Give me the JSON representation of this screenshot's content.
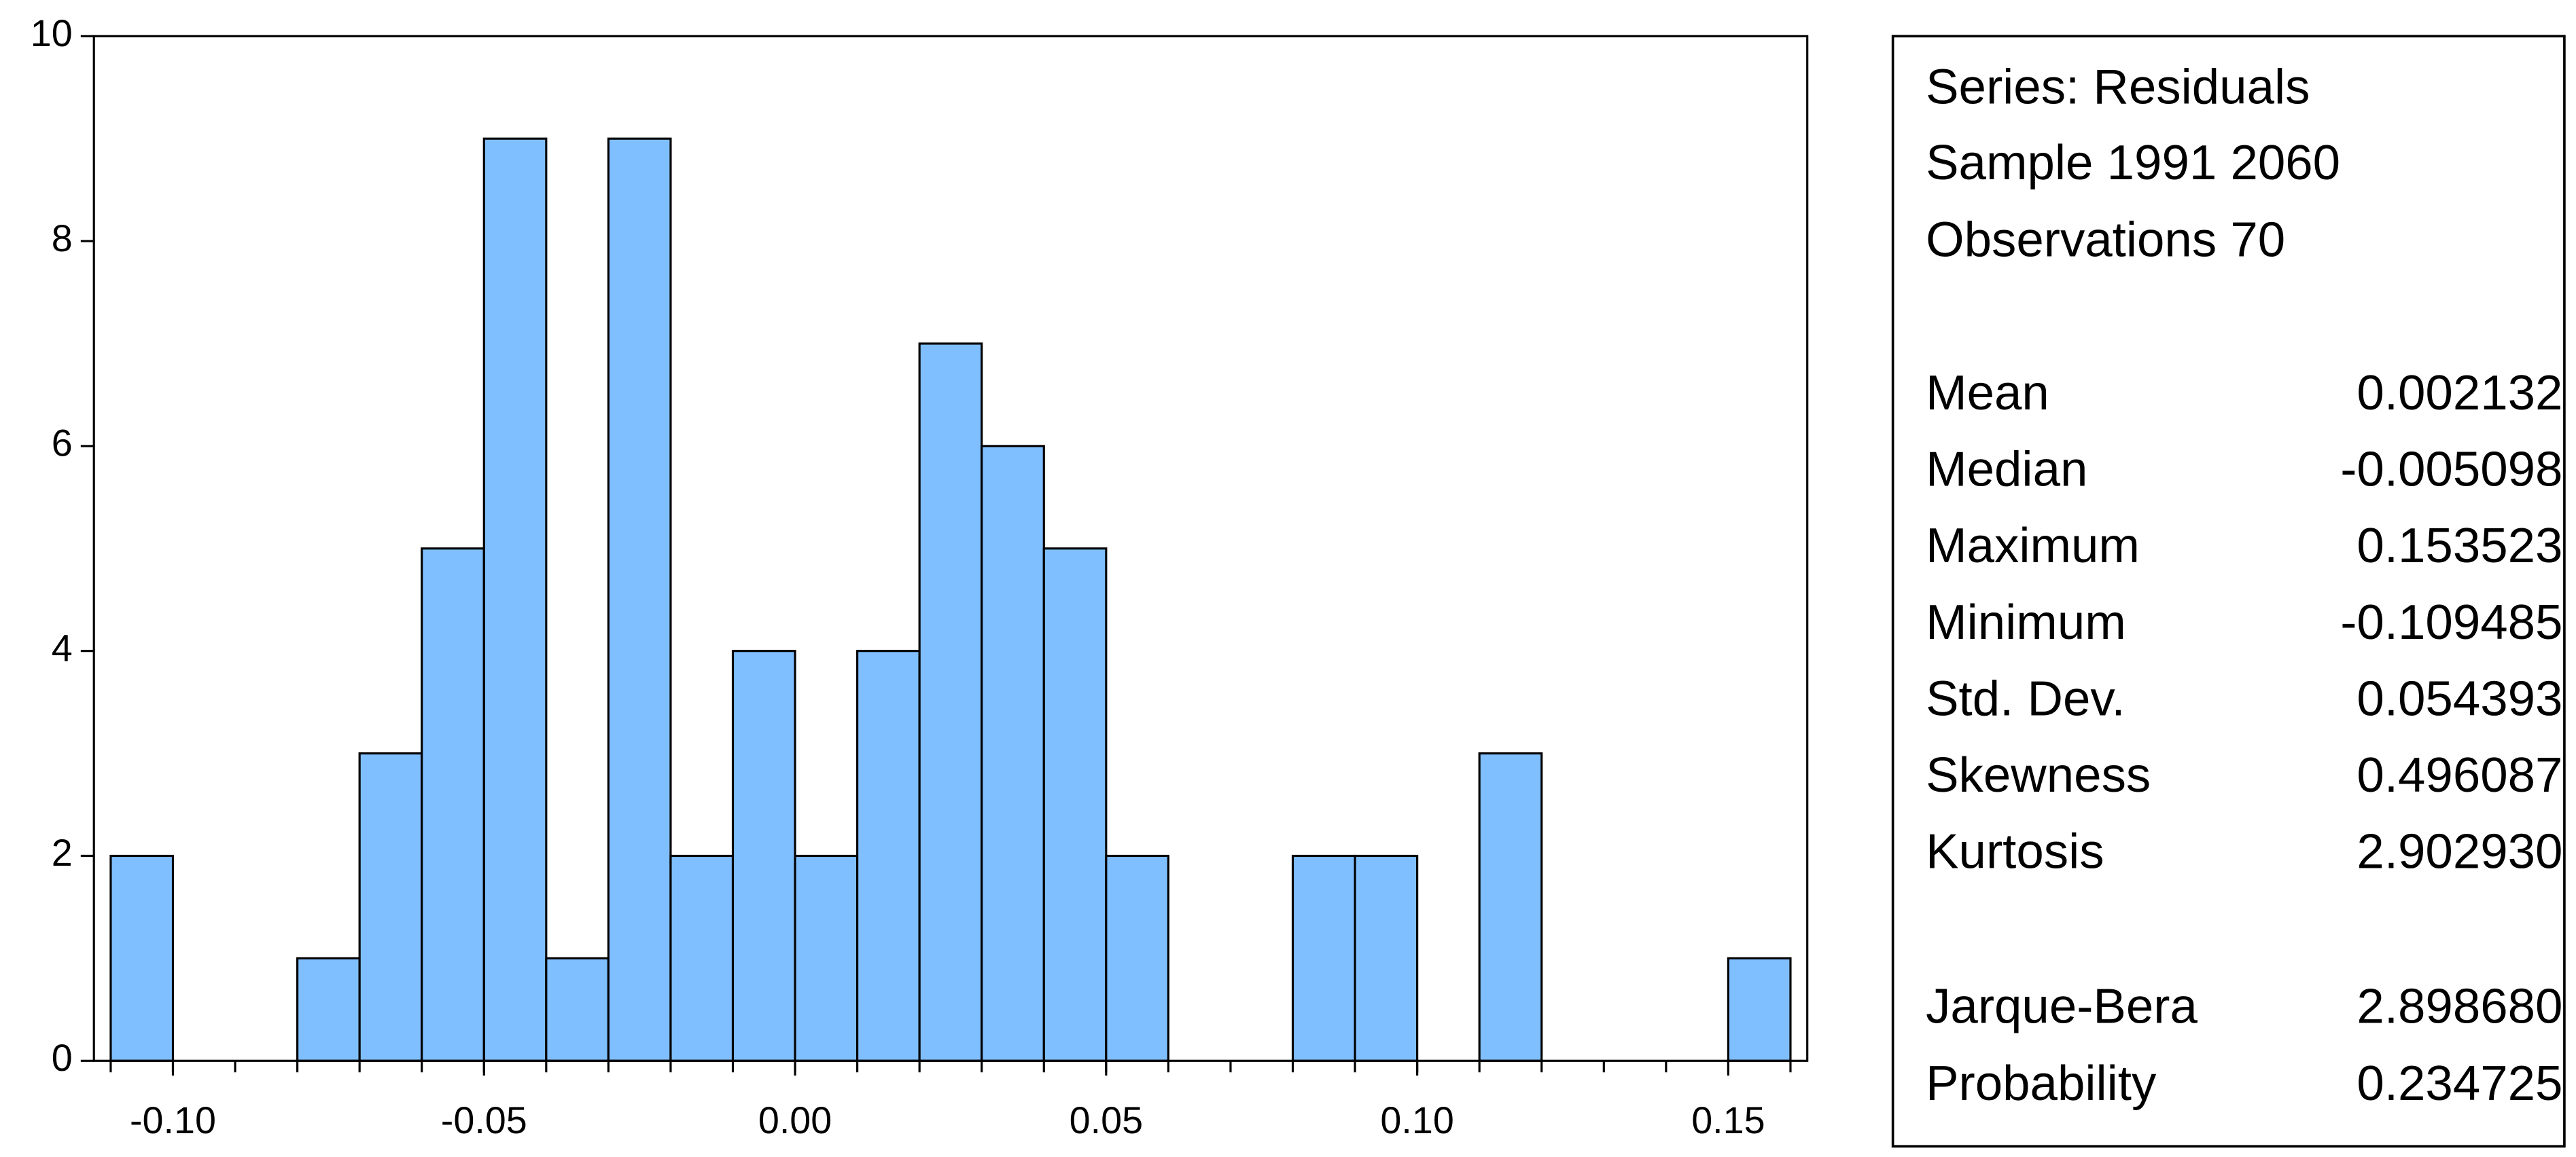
{
  "chart_data": {
    "type": "histogram",
    "bins": [
      -0.11,
      -0.1,
      -0.09,
      -0.08,
      -0.07,
      -0.06,
      -0.05,
      -0.04,
      -0.03,
      -0.02,
      -0.01,
      0.0,
      0.01,
      0.02,
      0.03,
      0.04,
      0.05,
      0.06,
      0.07,
      0.08,
      0.09,
      0.1,
      0.11,
      0.12,
      0.13,
      0.14,
      0.15,
      0.16
    ],
    "values": [
      2,
      0,
      0,
      1,
      3,
      5,
      9,
      1,
      9,
      2,
      4,
      2,
      4,
      7,
      6,
      5,
      2,
      0,
      0,
      2,
      2,
      0,
      3,
      0,
      0,
      0,
      1
    ],
    "color": "#80bfff",
    "xlim": [
      -0.1127,
      0.1627
    ],
    "xticks": [
      {
        "value": -0.1,
        "label": "-0.10"
      },
      {
        "value": -0.05,
        "label": "-0.05"
      },
      {
        "value": 0.0,
        "label": "0.00"
      },
      {
        "value": 0.05,
        "label": "0.05"
      },
      {
        "value": 0.1,
        "label": "0.10"
      },
      {
        "value": 0.15,
        "label": "0.15"
      }
    ],
    "ylim": [
      0,
      10
    ],
    "yticks": [
      0,
      2,
      4,
      6,
      8,
      10
    ]
  },
  "stats": {
    "header": [
      "Series: Residuals",
      "Sample 1991 2060",
      "Observations 70"
    ],
    "rows": [
      [
        "Mean",
        "0.002132"
      ],
      [
        "Median",
        "-0.005098"
      ],
      [
        "Maximum",
        "0.153523"
      ],
      [
        "Minimum",
        "-0.109485"
      ],
      [
        "Std. Dev.",
        "0.054393"
      ],
      [
        "Skewness",
        "0.496087"
      ],
      [
        "Kurtosis",
        "2.902930"
      ]
    ],
    "tests": [
      [
        "Jarque-Bera",
        "2.898680"
      ],
      [
        "Probability",
        "0.234725"
      ]
    ]
  }
}
